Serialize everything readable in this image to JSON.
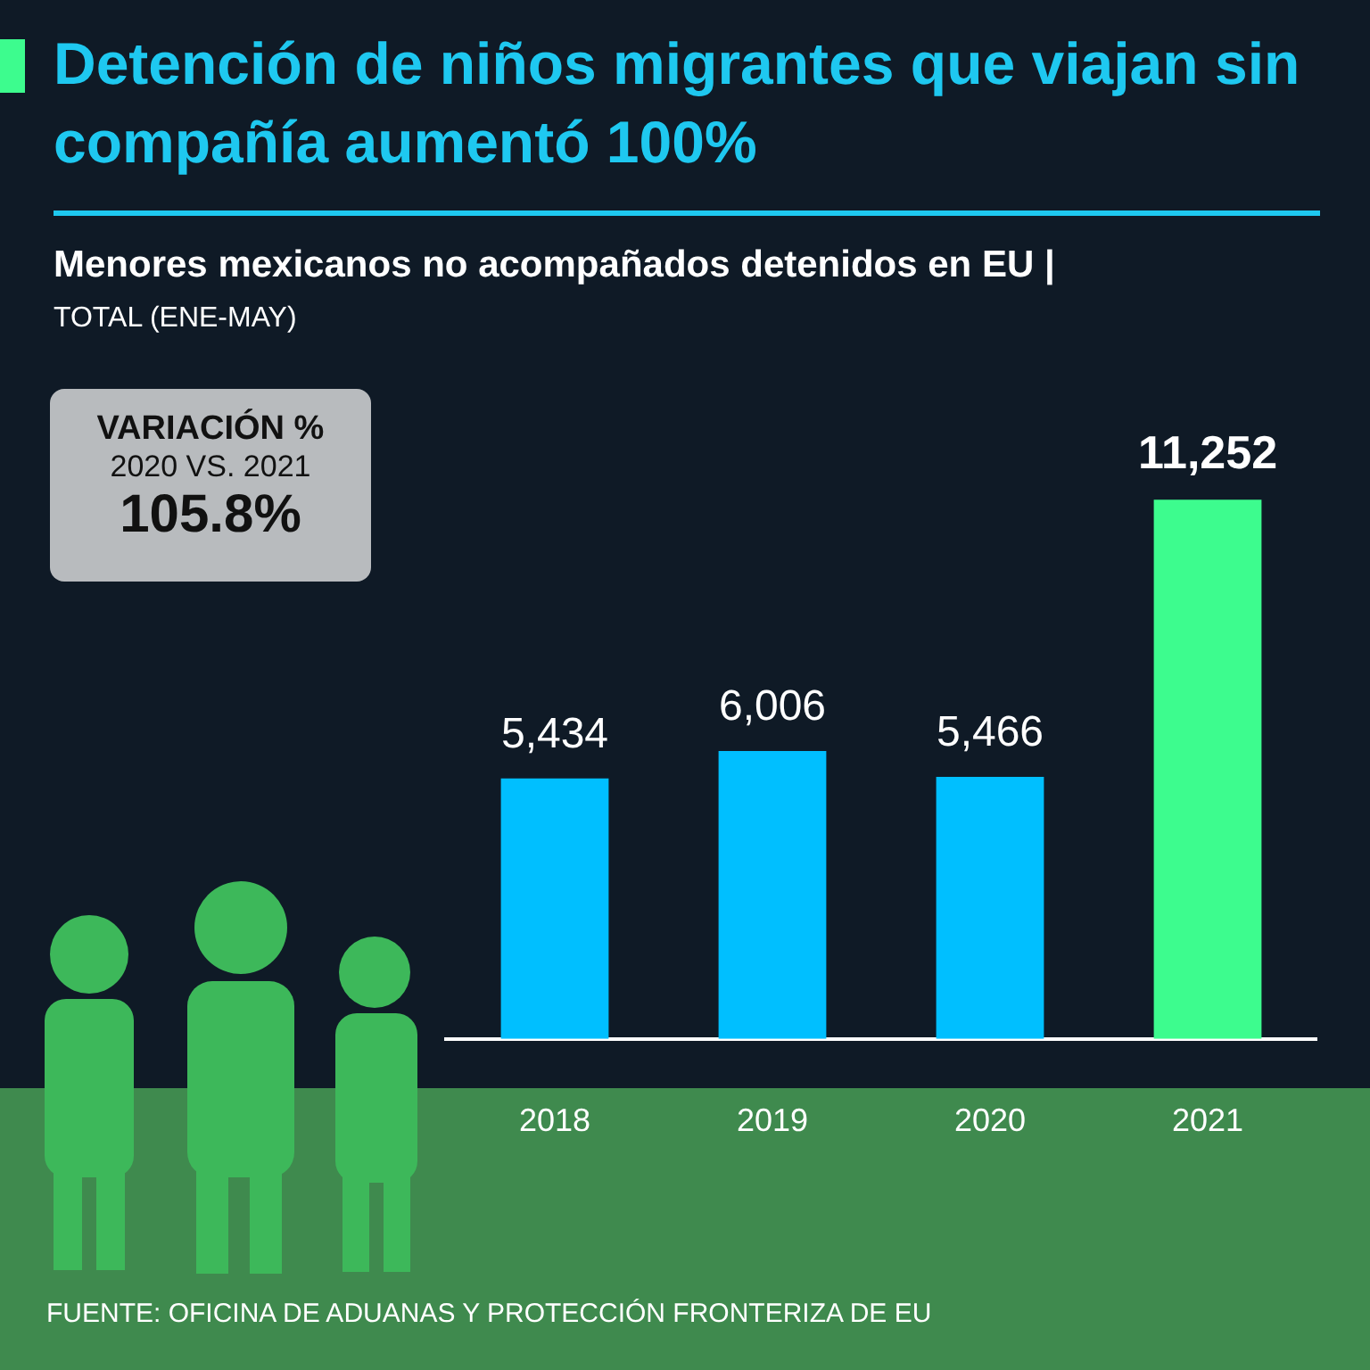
{
  "chart_data": {
    "type": "bar",
    "title": "Detención de niños migrantes que viajan sin compañía aumentó 100%",
    "subtitle": "Menores mexicanos no acompañados detenidos en EU |",
    "categories": [
      "2018",
      "2019",
      "2020",
      "2021"
    ],
    "values": [
      5434,
      6006,
      5466,
      11252
    ],
    "colors": [
      "#00bfff",
      "#00bfff",
      "#00bfff",
      "#3dfc8e"
    ],
    "value_labels": [
      "5,434",
      "6,006",
      "5,466",
      "11,252"
    ],
    "annotations": [
      "TOTAL (ENE-MAY)",
      "VARIACIÓN %",
      "2020 VS. 2021",
      "105.8%",
      "FUENTE: OFICINA DE ADUANAS Y PROTECCIÓN FRONTERIZA DE EU"
    ]
  }
}
